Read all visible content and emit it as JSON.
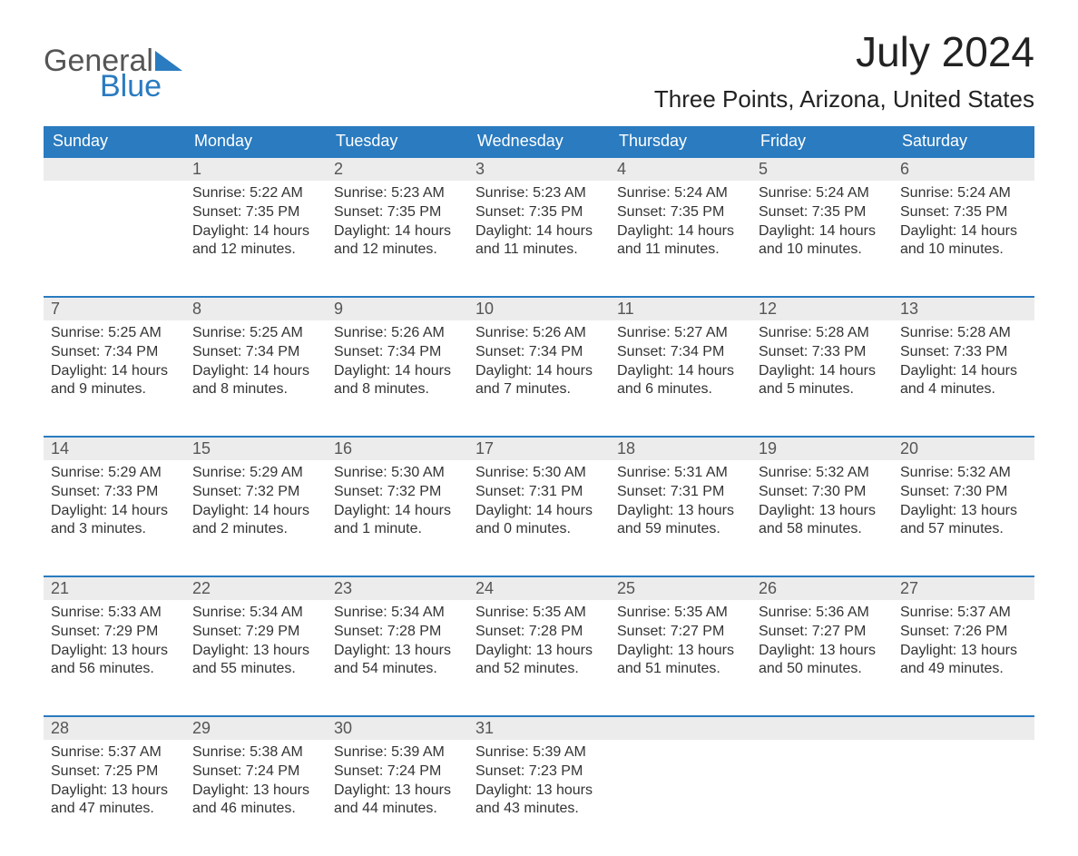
{
  "brand": {
    "top": "General",
    "bottom": "Blue",
    "top_color": "#555555",
    "bottom_color": "#2a7bc0"
  },
  "title": "July 2024",
  "location": "Three Points, Arizona, United States",
  "header_bg": "#2a7bc0",
  "header_fg": "#ffffff",
  "daynum_bg": "#ececec",
  "row_divider": "#2a7bc0",
  "day_names": [
    "Sunday",
    "Monday",
    "Tuesday",
    "Wednesday",
    "Thursday",
    "Friday",
    "Saturday"
  ],
  "weeks": [
    [
      null,
      {
        "n": "1",
        "sunrise": "5:22 AM",
        "sunset": "7:35 PM",
        "daylight": "14 hours and 12 minutes."
      },
      {
        "n": "2",
        "sunrise": "5:23 AM",
        "sunset": "7:35 PM",
        "daylight": "14 hours and 12 minutes."
      },
      {
        "n": "3",
        "sunrise": "5:23 AM",
        "sunset": "7:35 PM",
        "daylight": "14 hours and 11 minutes."
      },
      {
        "n": "4",
        "sunrise": "5:24 AM",
        "sunset": "7:35 PM",
        "daylight": "14 hours and 11 minutes."
      },
      {
        "n": "5",
        "sunrise": "5:24 AM",
        "sunset": "7:35 PM",
        "daylight": "14 hours and 10 minutes."
      },
      {
        "n": "6",
        "sunrise": "5:24 AM",
        "sunset": "7:35 PM",
        "daylight": "14 hours and 10 minutes."
      }
    ],
    [
      {
        "n": "7",
        "sunrise": "5:25 AM",
        "sunset": "7:34 PM",
        "daylight": "14 hours and 9 minutes."
      },
      {
        "n": "8",
        "sunrise": "5:25 AM",
        "sunset": "7:34 PM",
        "daylight": "14 hours and 8 minutes."
      },
      {
        "n": "9",
        "sunrise": "5:26 AM",
        "sunset": "7:34 PM",
        "daylight": "14 hours and 8 minutes."
      },
      {
        "n": "10",
        "sunrise": "5:26 AM",
        "sunset": "7:34 PM",
        "daylight": "14 hours and 7 minutes."
      },
      {
        "n": "11",
        "sunrise": "5:27 AM",
        "sunset": "7:34 PM",
        "daylight": "14 hours and 6 minutes."
      },
      {
        "n": "12",
        "sunrise": "5:28 AM",
        "sunset": "7:33 PM",
        "daylight": "14 hours and 5 minutes."
      },
      {
        "n": "13",
        "sunrise": "5:28 AM",
        "sunset": "7:33 PM",
        "daylight": "14 hours and 4 minutes."
      }
    ],
    [
      {
        "n": "14",
        "sunrise": "5:29 AM",
        "sunset": "7:33 PM",
        "daylight": "14 hours and 3 minutes."
      },
      {
        "n": "15",
        "sunrise": "5:29 AM",
        "sunset": "7:32 PM",
        "daylight": "14 hours and 2 minutes."
      },
      {
        "n": "16",
        "sunrise": "5:30 AM",
        "sunset": "7:32 PM",
        "daylight": "14 hours and 1 minute."
      },
      {
        "n": "17",
        "sunrise": "5:30 AM",
        "sunset": "7:31 PM",
        "daylight": "14 hours and 0 minutes."
      },
      {
        "n": "18",
        "sunrise": "5:31 AM",
        "sunset": "7:31 PM",
        "daylight": "13 hours and 59 minutes."
      },
      {
        "n": "19",
        "sunrise": "5:32 AM",
        "sunset": "7:30 PM",
        "daylight": "13 hours and 58 minutes."
      },
      {
        "n": "20",
        "sunrise": "5:32 AM",
        "sunset": "7:30 PM",
        "daylight": "13 hours and 57 minutes."
      }
    ],
    [
      {
        "n": "21",
        "sunrise": "5:33 AM",
        "sunset": "7:29 PM",
        "daylight": "13 hours and 56 minutes."
      },
      {
        "n": "22",
        "sunrise": "5:34 AM",
        "sunset": "7:29 PM",
        "daylight": "13 hours and 55 minutes."
      },
      {
        "n": "23",
        "sunrise": "5:34 AM",
        "sunset": "7:28 PM",
        "daylight": "13 hours and 54 minutes."
      },
      {
        "n": "24",
        "sunrise": "5:35 AM",
        "sunset": "7:28 PM",
        "daylight": "13 hours and 52 minutes."
      },
      {
        "n": "25",
        "sunrise": "5:35 AM",
        "sunset": "7:27 PM",
        "daylight": "13 hours and 51 minutes."
      },
      {
        "n": "26",
        "sunrise": "5:36 AM",
        "sunset": "7:27 PM",
        "daylight": "13 hours and 50 minutes."
      },
      {
        "n": "27",
        "sunrise": "5:37 AM",
        "sunset": "7:26 PM",
        "daylight": "13 hours and 49 minutes."
      }
    ],
    [
      {
        "n": "28",
        "sunrise": "5:37 AM",
        "sunset": "7:25 PM",
        "daylight": "13 hours and 47 minutes."
      },
      {
        "n": "29",
        "sunrise": "5:38 AM",
        "sunset": "7:24 PM",
        "daylight": "13 hours and 46 minutes."
      },
      {
        "n": "30",
        "sunrise": "5:39 AM",
        "sunset": "7:24 PM",
        "daylight": "13 hours and 44 minutes."
      },
      {
        "n": "31",
        "sunrise": "5:39 AM",
        "sunset": "7:23 PM",
        "daylight": "13 hours and 43 minutes."
      },
      null,
      null,
      null
    ]
  ],
  "labels": {
    "sunrise": "Sunrise:",
    "sunset": "Sunset:",
    "daylight": "Daylight:"
  }
}
